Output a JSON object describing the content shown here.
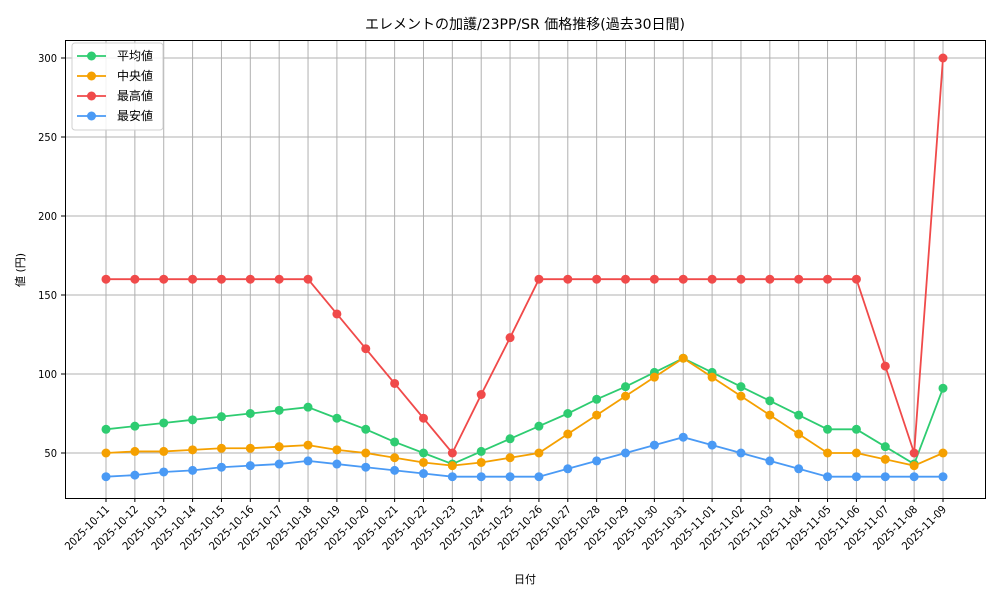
{
  "chart_data": {
    "type": "line",
    "title": "エレメントの加護/23PP/SR 価格推移(過去30日間)",
    "xlabel": "日付",
    "ylabel": "値 (円)",
    "ylim": [
      22,
      313
    ],
    "yticks": [
      50,
      100,
      150,
      200,
      250,
      300
    ],
    "grid": true,
    "legend_position": "upper left",
    "categories": [
      "2025-10-11",
      "2025-10-12",
      "2025-10-13",
      "2025-10-14",
      "2025-10-15",
      "2025-10-16",
      "2025-10-17",
      "2025-10-18",
      "2025-10-19",
      "2025-10-20",
      "2025-10-21",
      "2025-10-22",
      "2025-10-23",
      "2025-10-24",
      "2025-10-25",
      "2025-10-26",
      "2025-10-27",
      "2025-10-28",
      "2025-10-29",
      "2025-10-30",
      "2025-10-31",
      "2025-11-01",
      "2025-11-02",
      "2025-11-03",
      "2025-11-04",
      "2025-11-05",
      "2025-11-06",
      "2025-11-07",
      "2025-11-08",
      "2025-11-09"
    ],
    "series": [
      {
        "name": "平均値",
        "color": "#2ecc71",
        "values": [
          65,
          67,
          69,
          71,
          73,
          75,
          77,
          79,
          72,
          65,
          57,
          50,
          43,
          51,
          59,
          67,
          75,
          84,
          92,
          101,
          110,
          101,
          92,
          83,
          74,
          65,
          65,
          54,
          43,
          91
        ]
      },
      {
        "name": "中央値",
        "color": "#f5a000",
        "values": [
          50,
          51,
          51,
          52,
          53,
          53,
          54,
          55,
          52,
          50,
          47,
          44,
          42,
          44,
          47,
          50,
          62,
          74,
          86,
          98,
          110,
          98,
          86,
          74,
          62,
          50,
          50,
          46,
          42,
          50
        ]
      },
      {
        "name": "最高値",
        "color": "#f04a4a",
        "values": [
          160,
          160,
          160,
          160,
          160,
          160,
          160,
          160,
          138,
          116,
          94,
          72,
          50,
          87,
          123,
          160,
          160,
          160,
          160,
          160,
          160,
          160,
          160,
          160,
          160,
          160,
          160,
          105,
          50,
          300
        ]
      },
      {
        "name": "最安値",
        "color": "#4a9af5",
        "values": [
          35,
          36,
          38,
          39,
          41,
          42,
          43,
          45,
          43,
          41,
          39,
          37,
          35,
          35,
          35,
          35,
          40,
          45,
          50,
          55,
          60,
          55,
          50,
          45,
          40,
          35,
          35,
          35,
          35,
          35
        ]
      }
    ]
  }
}
